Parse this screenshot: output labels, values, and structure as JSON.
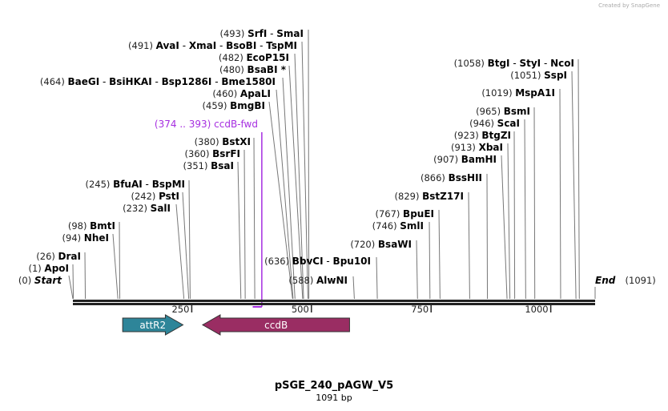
{
  "credit": "Created by SnapGene",
  "title": "pSGE_240_pAGW_V5",
  "length_label": "1091 bp",
  "total_bp": 1091,
  "ends": {
    "start": {
      "pos": "(0)",
      "name": "Start"
    },
    "end": {
      "pos": "(1091)",
      "name": "End"
    }
  },
  "ticks": [
    {
      "value": 250,
      "label": "250"
    },
    {
      "value": 500,
      "label": "500"
    },
    {
      "value": 750,
      "label": "750"
    },
    {
      "value": 1000,
      "label": "1000"
    }
  ],
  "sites": [
    {
      "bp": 493,
      "pos": "(493)",
      "names": [
        "SrfI",
        "SmaI"
      ]
    },
    {
      "bp": 491,
      "pos": "(491)",
      "names": [
        "AvaI",
        "XmaI",
        "BsoBI",
        "TspMI"
      ]
    },
    {
      "bp": 482,
      "pos": "(482)",
      "names": [
        "EcoP15I"
      ]
    },
    {
      "bp": 480,
      "pos": "(480)",
      "names": [
        "BsaBI *"
      ]
    },
    {
      "bp": 464,
      "pos": "(464)",
      "names": [
        "BaeGI",
        "BsiHKAI",
        "Bsp1286I",
        "Bme1580I"
      ]
    },
    {
      "bp": 460,
      "pos": "(460)",
      "names": [
        "ApaLI"
      ]
    },
    {
      "bp": 459,
      "pos": "(459)",
      "names": [
        "BmgBI"
      ]
    },
    {
      "bp": 380,
      "pos": "(380)",
      "names": [
        "BstXI"
      ]
    },
    {
      "bp": 360,
      "pos": "(360)",
      "names": [
        "BsrFI"
      ]
    },
    {
      "bp": 351,
      "pos": "(351)",
      "names": [
        "BsaI"
      ]
    },
    {
      "bp": 245,
      "pos": "(245)",
      "names": [
        "BfuAI",
        "BspMI"
      ]
    },
    {
      "bp": 242,
      "pos": "(242)",
      "names": [
        "PstI"
      ]
    },
    {
      "bp": 232,
      "pos": "(232)",
      "names": [
        "SalI"
      ]
    },
    {
      "bp": 98,
      "pos": "(98)",
      "names": [
        "BmtI"
      ]
    },
    {
      "bp": 94,
      "pos": "(94)",
      "names": [
        "NheI"
      ]
    },
    {
      "bp": 26,
      "pos": "(26)",
      "names": [
        "DraI"
      ]
    },
    {
      "bp": 1,
      "pos": "(1)",
      "names": [
        "ApoI"
      ]
    },
    {
      "bp": 636,
      "pos": "(636)",
      "names": [
        "BbvCI",
        "Bpu10I"
      ]
    },
    {
      "bp": 588,
      "pos": "(588)",
      "names": [
        "AlwNI"
      ]
    },
    {
      "bp": 720,
      "pos": "(720)",
      "names": [
        "BsaWI"
      ]
    },
    {
      "bp": 746,
      "pos": "(746)",
      "names": [
        "SmlI"
      ]
    },
    {
      "bp": 767,
      "pos": "(767)",
      "names": [
        "BpuEI"
      ]
    },
    {
      "bp": 829,
      "pos": "(829)",
      "names": [
        "BstZ17I"
      ]
    },
    {
      "bp": 866,
      "pos": "(866)",
      "names": [
        "BssHII"
      ]
    },
    {
      "bp": 907,
      "pos": "(907)",
      "names": [
        "BamHI"
      ]
    },
    {
      "bp": 913,
      "pos": "(913)",
      "names": [
        "XbaI"
      ]
    },
    {
      "bp": 923,
      "pos": "(923)",
      "names": [
        "BtgZI"
      ]
    },
    {
      "bp": 946,
      "pos": "(946)",
      "names": [
        "ScaI"
      ]
    },
    {
      "bp": 965,
      "pos": "(965)",
      "names": [
        "BsmI"
      ]
    },
    {
      "bp": 1019,
      "pos": "(1019)",
      "names": [
        "MspA1I"
      ]
    },
    {
      "bp": 1051,
      "pos": "(1051)",
      "names": [
        "SspI"
      ]
    },
    {
      "bp": 1058,
      "pos": "(1058)",
      "names": [
        "BtgI",
        "StyI",
        "NcoI"
      ]
    }
  ],
  "primer": {
    "range": "(374 .. 393)",
    "name": "ccdB-fwd",
    "start": 374,
    "end": 393,
    "color": "#a62ee0"
  },
  "features": [
    {
      "name": "attR2",
      "start": 104,
      "end": 230,
      "direction": "forward",
      "color": "#2e8599"
    },
    {
      "name": "ccdB",
      "start": 271,
      "end": 578,
      "direction": "reverse",
      "color": "#9a2d63"
    }
  ]
}
